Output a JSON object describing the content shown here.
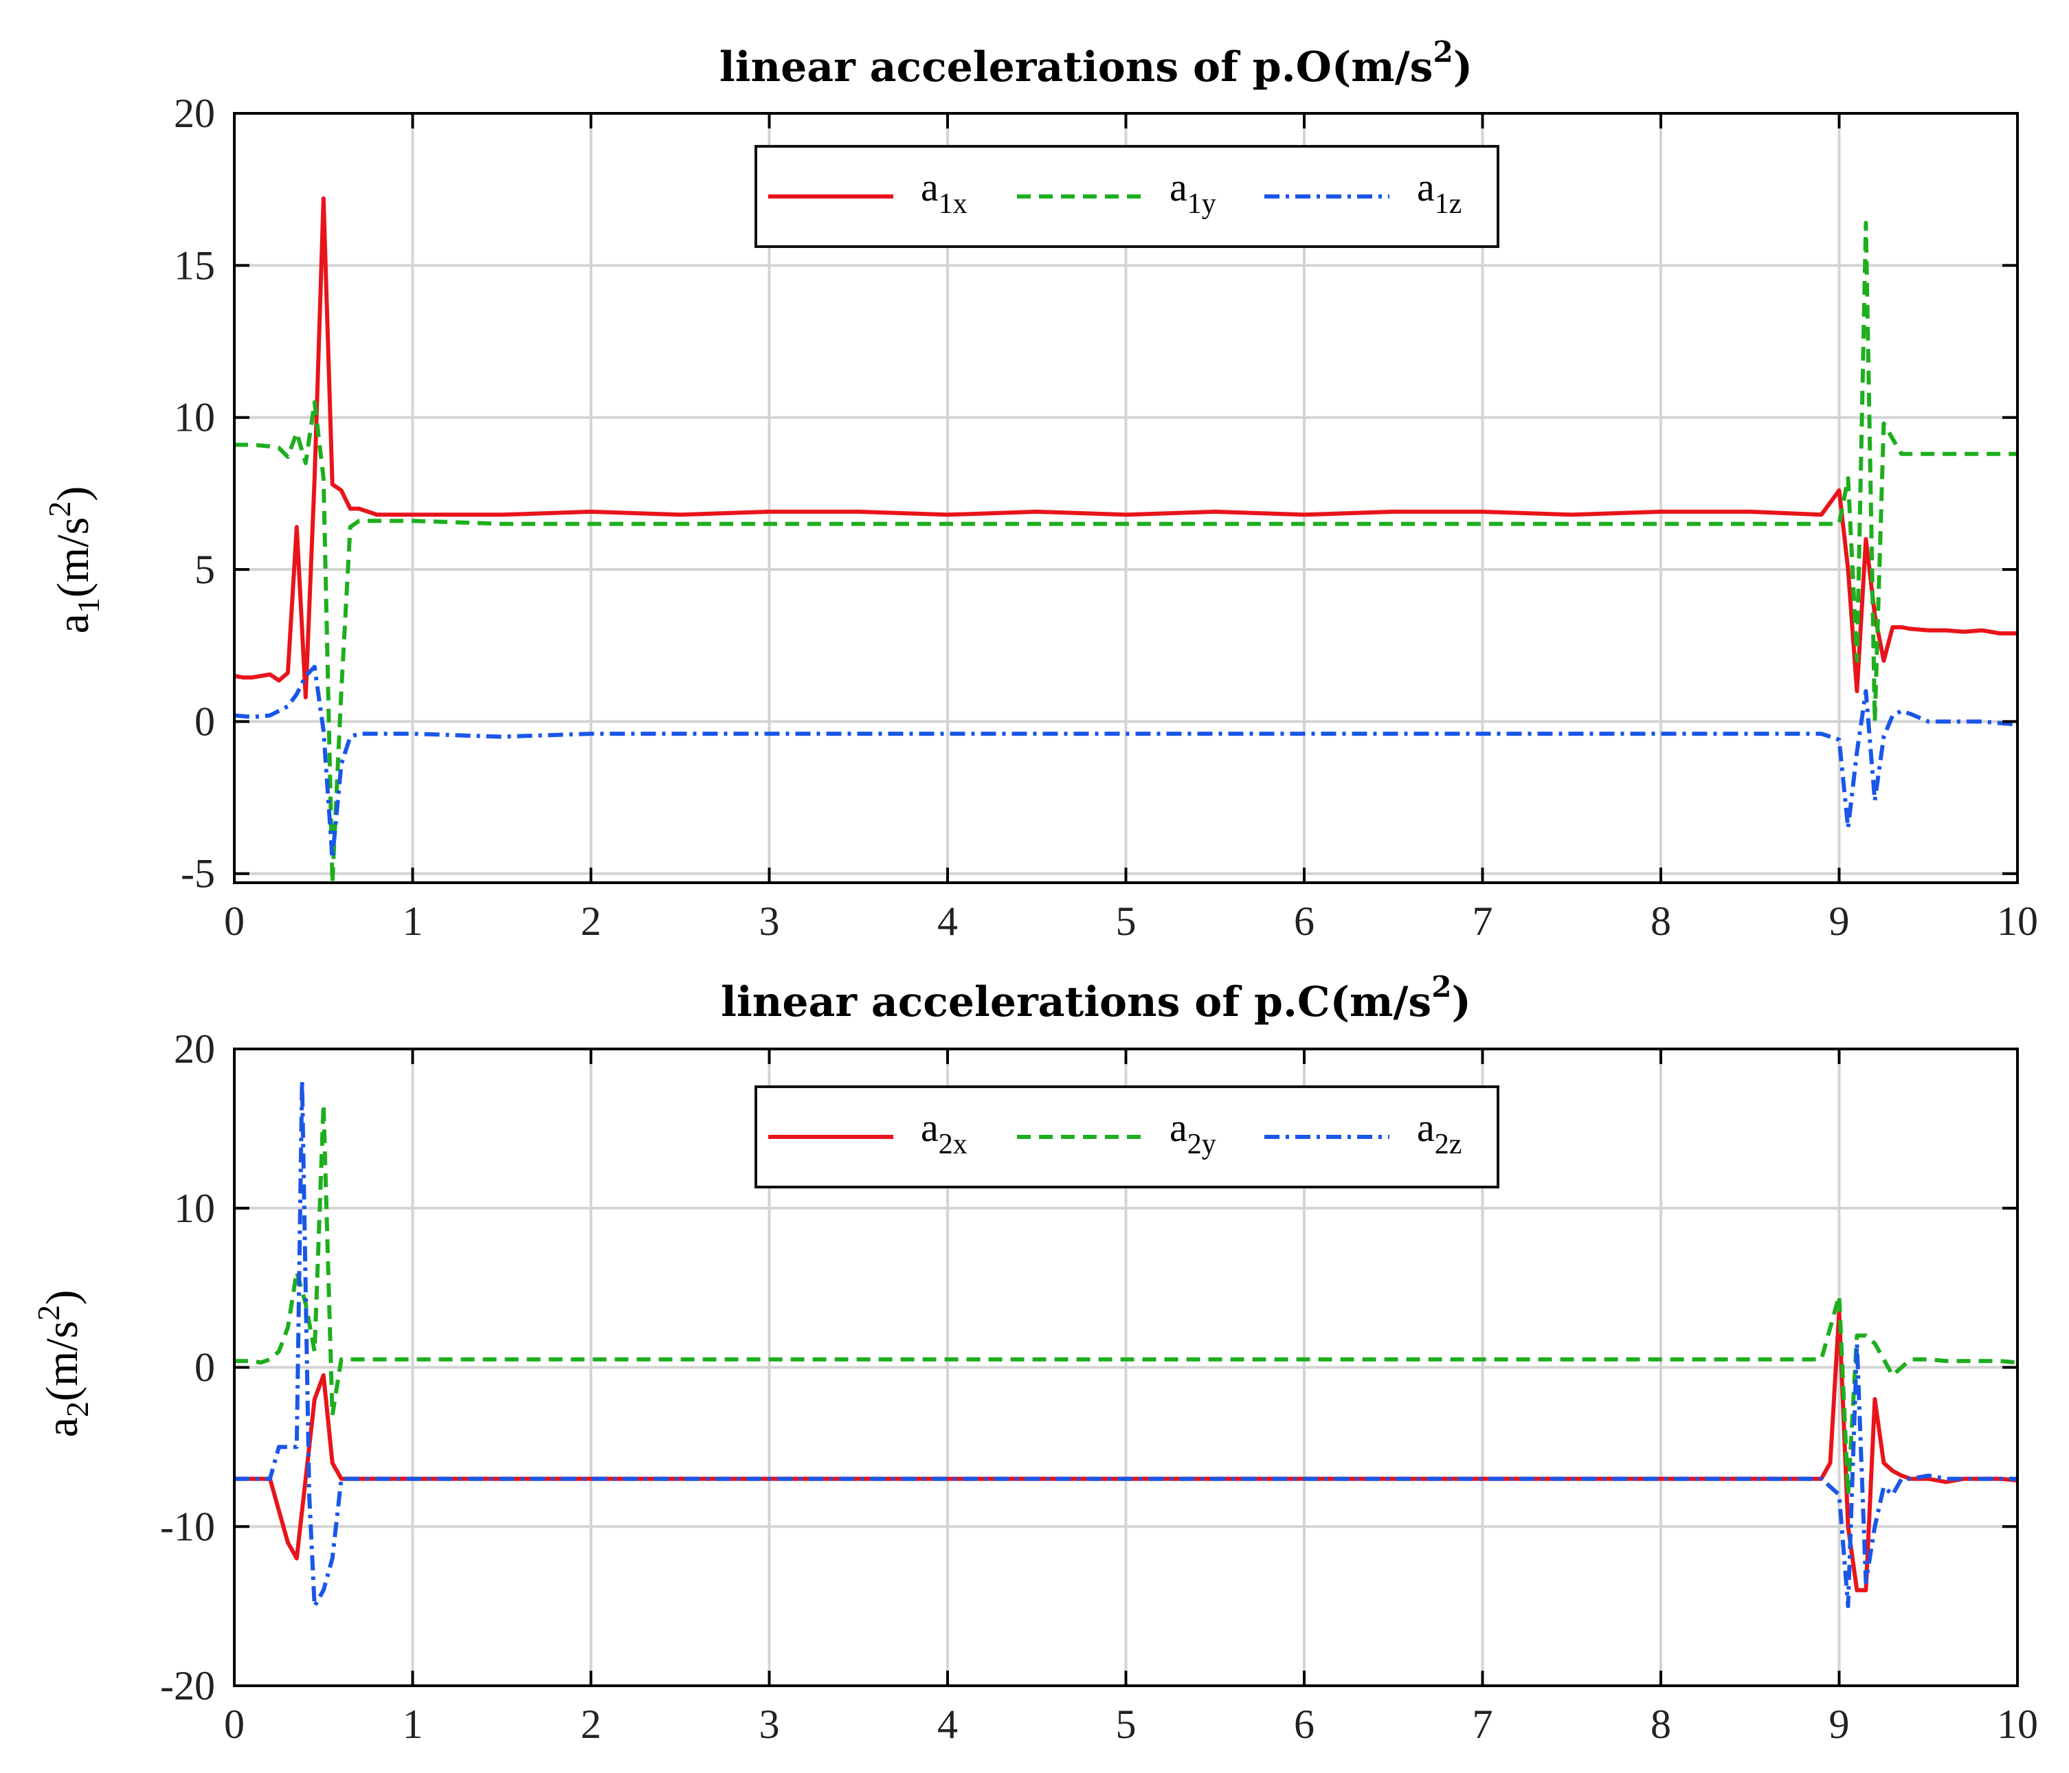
{
  "chart_data": [
    {
      "type": "line",
      "title": "linear accelerations of p.O(m/s",
      "title_sup": "2",
      "title_tail": ")",
      "xlabel": "",
      "ylabel": {
        "base": "a",
        "sub": "1",
        "mid": "(m/s",
        "sup": "2",
        "tail": ")"
      },
      "xlim": [
        0,
        10
      ],
      "ylim": [
        -5.3,
        20
      ],
      "xticks": [
        0,
        1,
        2,
        3,
        4,
        5,
        6,
        7,
        8,
        9,
        10
      ],
      "xtick_labels": [
        "0",
        "1",
        "2",
        "3",
        "4",
        "5",
        "6",
        "7",
        "8",
        "9",
        "10"
      ],
      "yticks": [
        -5,
        0,
        5,
        10,
        15,
        20
      ],
      "ytick_labels": [
        "-5",
        "0",
        "5",
        "10",
        "15",
        "20"
      ],
      "grid": true,
      "legend_position": "top-center",
      "series": [
        {
          "name": "a1x",
          "label_base": "a",
          "label_sub": "1x",
          "color": "#e8141b",
          "style": "solid",
          "x": [
            0,
            0.05,
            0.1,
            0.15,
            0.2,
            0.25,
            0.3,
            0.35,
            0.4,
            0.45,
            0.5,
            0.55,
            0.6,
            0.65,
            0.7,
            0.75,
            0.8,
            1.0,
            1.5,
            2.0,
            2.5,
            3.0,
            3.5,
            4.0,
            4.5,
            5.0,
            5.5,
            6.0,
            6.5,
            7.0,
            7.5,
            8.0,
            8.5,
            8.9,
            9.0,
            9.05,
            9.1,
            9.15,
            9.2,
            9.25,
            9.3,
            9.35,
            9.4,
            9.5,
            9.6,
            9.7,
            9.8,
            9.9,
            10.0
          ],
          "y": [
            1.5,
            1.45,
            1.45,
            1.5,
            1.55,
            1.35,
            1.6,
            6.4,
            0.8,
            8.0,
            17.2,
            7.8,
            7.6,
            7.0,
            7.0,
            6.9,
            6.8,
            6.8,
            6.8,
            6.9,
            6.8,
            6.9,
            6.9,
            6.8,
            6.9,
            6.8,
            6.9,
            6.8,
            6.9,
            6.9,
            6.8,
            6.9,
            6.9,
            6.8,
            7.6,
            5.0,
            1.0,
            6.0,
            3.5,
            2.0,
            3.1,
            3.1,
            3.05,
            3.0,
            3.0,
            2.95,
            3.0,
            2.9,
            2.9
          ]
        },
        {
          "name": "a1y",
          "label_base": "a",
          "label_sub": "1y",
          "color": "#1eae1e",
          "style": "dashed",
          "x": [
            0,
            0.1,
            0.2,
            0.25,
            0.3,
            0.35,
            0.4,
            0.45,
            0.5,
            0.55,
            0.6,
            0.65,
            0.7,
            0.8,
            1.0,
            1.5,
            2.0,
            2.5,
            3.0,
            3.5,
            4.0,
            4.5,
            5.0,
            5.5,
            6.0,
            6.5,
            7.0,
            7.5,
            8.0,
            8.5,
            8.9,
            9.0,
            9.05,
            9.1,
            9.15,
            9.2,
            9.25,
            9.3,
            9.35,
            9.4,
            9.5,
            9.6,
            9.7,
            9.8,
            9.9,
            10.0
          ],
          "y": [
            9.1,
            9.1,
            9.05,
            9.0,
            8.7,
            9.5,
            8.5,
            10.5,
            8.0,
            -5.3,
            1.0,
            6.4,
            6.6,
            6.6,
            6.6,
            6.5,
            6.5,
            6.5,
            6.5,
            6.5,
            6.5,
            6.5,
            6.5,
            6.5,
            6.5,
            6.5,
            6.5,
            6.5,
            6.5,
            6.5,
            6.5,
            6.5,
            8.0,
            2.0,
            16.4,
            0.0,
            9.8,
            9.3,
            8.8,
            8.8,
            8.8,
            8.8,
            8.8,
            8.8,
            8.8,
            8.8
          ]
        },
        {
          "name": "a1z",
          "label_base": "a",
          "label_sub": "1z",
          "color": "#1a56e8",
          "style": "dashdot",
          "x": [
            0,
            0.1,
            0.2,
            0.3,
            0.35,
            0.4,
            0.45,
            0.5,
            0.55,
            0.6,
            0.65,
            0.7,
            0.8,
            1.0,
            1.5,
            2.0,
            2.5,
            3.0,
            3.5,
            4.0,
            4.5,
            5.0,
            5.5,
            6.0,
            6.5,
            7.0,
            7.5,
            8.0,
            8.5,
            8.9,
            9.0,
            9.05,
            9.1,
            9.15,
            9.2,
            9.25,
            9.3,
            9.35,
            9.4,
            9.5,
            9.6,
            9.7,
            9.8,
            9.9,
            10.0
          ],
          "y": [
            0.2,
            0.15,
            0.2,
            0.5,
            0.9,
            1.5,
            1.8,
            -0.3,
            -4.5,
            -1.4,
            -0.5,
            -0.4,
            -0.4,
            -0.4,
            -0.5,
            -0.4,
            -0.4,
            -0.4,
            -0.4,
            -0.4,
            -0.4,
            -0.4,
            -0.4,
            -0.4,
            -0.4,
            -0.4,
            -0.4,
            -0.4,
            -0.4,
            -0.4,
            -0.6,
            -3.5,
            -1.0,
            1.0,
            -2.6,
            -0.5,
            0.2,
            0.35,
            0.25,
            0.0,
            0.0,
            0.0,
            0.0,
            -0.05,
            -0.1
          ]
        }
      ]
    },
    {
      "type": "line",
      "title": "linear accelerations of p.C(m/s",
      "title_sup": "2",
      "title_tail": ")",
      "xlabel": "",
      "ylabel": {
        "base": "a",
        "sub": "2",
        "mid": "(m/s",
        "sup": "2",
        "tail": ")"
      },
      "xlim": [
        0,
        10
      ],
      "ylim": [
        -20,
        20
      ],
      "xticks": [
        0,
        1,
        2,
        3,
        4,
        5,
        6,
        7,
        8,
        9,
        10
      ],
      "xtick_labels": [
        "0",
        "1",
        "2",
        "3",
        "4",
        "5",
        "6",
        "7",
        "8",
        "9",
        "10"
      ],
      "yticks": [
        -20,
        -10,
        0,
        10,
        20
      ],
      "ytick_labels": [
        "-20",
        "-10",
        "0",
        "10",
        "20"
      ],
      "grid": true,
      "legend_position": "top-center",
      "series": [
        {
          "name": "a2x",
          "label_base": "a",
          "label_sub": "2x",
          "color": "#e8141b",
          "style": "solid",
          "x": [
            0,
            0.1,
            0.2,
            0.25,
            0.3,
            0.35,
            0.4,
            0.45,
            0.5,
            0.55,
            0.6,
            0.65,
            0.7,
            1.0,
            1.5,
            2.0,
            2.5,
            3.0,
            3.5,
            4.0,
            4.5,
            5.0,
            5.5,
            6.0,
            6.5,
            7.0,
            7.5,
            8.0,
            8.5,
            8.9,
            8.95,
            9.0,
            9.05,
            9.1,
            9.15,
            9.2,
            9.25,
            9.3,
            9.35,
            9.4,
            9.5,
            9.6,
            9.7,
            9.8,
            9.9,
            10.0
          ],
          "y": [
            -7.0,
            -7.0,
            -7.0,
            -9.0,
            -11.0,
            -12.0,
            -7.0,
            -2.0,
            -0.5,
            -6.0,
            -7.0,
            -7.0,
            -7.0,
            -7.0,
            -7.0,
            -7.0,
            -7.0,
            -7.0,
            -7.0,
            -7.0,
            -7.0,
            -7.0,
            -7.0,
            -7.0,
            -7.0,
            -7.0,
            -7.0,
            -7.0,
            -7.0,
            -7.0,
            -6.0,
            3.5,
            -10.0,
            -14.0,
            -14.0,
            -2.0,
            -6.0,
            -6.5,
            -6.8,
            -7.0,
            -7.0,
            -7.2,
            -7.0,
            -7.0,
            -7.0,
            -7.1
          ]
        },
        {
          "name": "a2y",
          "label_base": "a",
          "label_sub": "2y",
          "color": "#1eae1e",
          "style": "dashed",
          "x": [
            0,
            0.1,
            0.15,
            0.2,
            0.25,
            0.3,
            0.35,
            0.4,
            0.45,
            0.5,
            0.55,
            0.6,
            0.65,
            0.7,
            1.0,
            1.5,
            2.0,
            2.5,
            3.0,
            3.5,
            4.0,
            4.5,
            5.0,
            5.5,
            6.0,
            6.5,
            7.0,
            7.5,
            8.0,
            8.5,
            8.9,
            9.0,
            9.05,
            9.1,
            9.15,
            9.2,
            9.25,
            9.3,
            9.4,
            9.5,
            9.6,
            9.7,
            9.8,
            9.9,
            10.0
          ],
          "y": [
            0.4,
            0.4,
            0.3,
            0.5,
            1.0,
            2.5,
            6.0,
            4.0,
            1.0,
            16.5,
            -3.0,
            0.5,
            0.5,
            0.5,
            0.5,
            0.5,
            0.5,
            0.5,
            0.5,
            0.5,
            0.5,
            0.5,
            0.5,
            0.5,
            0.5,
            0.5,
            0.5,
            0.5,
            0.5,
            0.5,
            0.5,
            4.5,
            -8.0,
            2.0,
            2.0,
            1.5,
            0.5,
            -0.5,
            0.5,
            0.5,
            0.4,
            0.4,
            0.4,
            0.4,
            0.3
          ]
        },
        {
          "name": "a2z",
          "label_base": "a",
          "label_sub": "2z",
          "color": "#1a56e8",
          "style": "dashdot",
          "x": [
            0,
            0.1,
            0.2,
            0.25,
            0.3,
            0.35,
            0.38,
            0.42,
            0.45,
            0.5,
            0.55,
            0.6,
            0.65,
            0.7,
            1.0,
            1.5,
            2.0,
            2.5,
            3.0,
            3.5,
            4.0,
            4.5,
            5.0,
            5.5,
            6.0,
            6.5,
            7.0,
            7.5,
            8.0,
            8.5,
            8.9,
            9.0,
            9.05,
            9.1,
            9.15,
            9.2,
            9.25,
            9.3,
            9.35,
            9.4,
            9.5,
            9.6,
            9.7,
            9.8,
            9.9,
            10.0
          ],
          "y": [
            -7.0,
            -7.0,
            -7.0,
            -5.0,
            -5.0,
            -5.0,
            18.0,
            -8.0,
            -15.0,
            -14.0,
            -12.0,
            -7.0,
            -7.0,
            -7.0,
            -7.0,
            -7.0,
            -7.0,
            -7.0,
            -7.0,
            -7.0,
            -7.0,
            -7.0,
            -7.0,
            -7.0,
            -7.0,
            -7.0,
            -7.0,
            -7.0,
            -7.0,
            -7.0,
            -7.0,
            -8.0,
            -15.0,
            1.5,
            -13.5,
            -10.0,
            -7.5,
            -8.0,
            -7.0,
            -7.0,
            -6.8,
            -7.0,
            -7.0,
            -7.0,
            -7.0,
            -7.0
          ]
        }
      ]
    }
  ]
}
